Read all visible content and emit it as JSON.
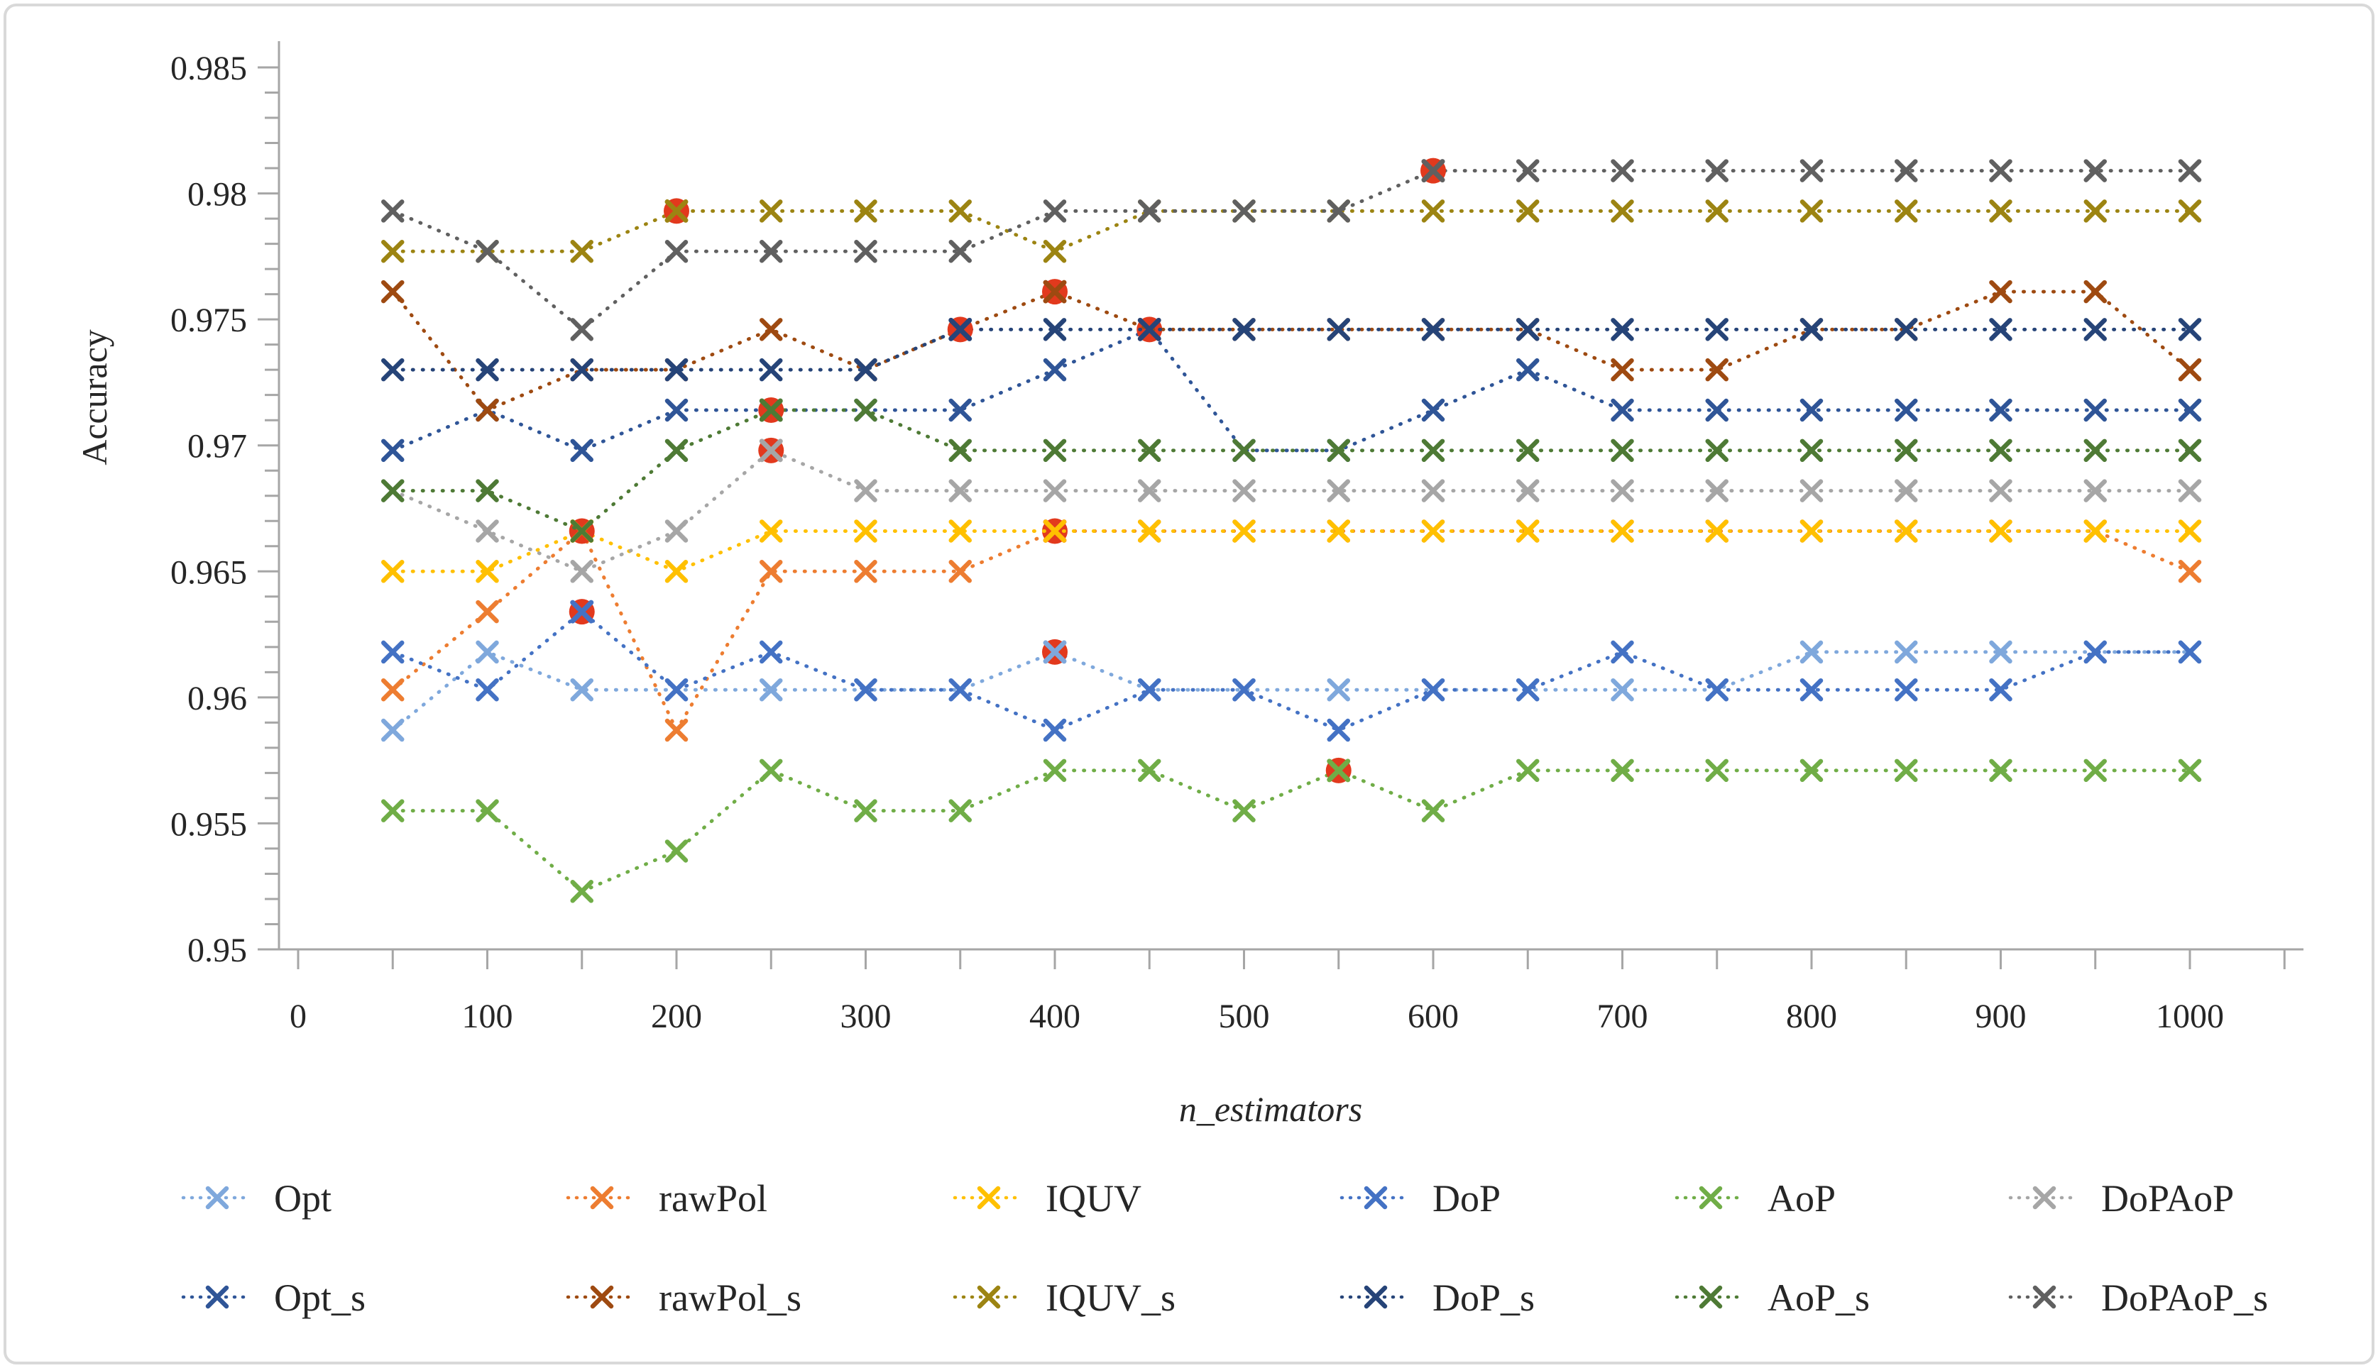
{
  "figure": {
    "border_color": "#d9d9d9",
    "background": "#ffffff"
  },
  "chart_data": {
    "type": "line",
    "title": "",
    "xlabel": "n_estimators",
    "ylabel": "Accuracy",
    "xlim": [
      0,
      1070
    ],
    "ylim": [
      0.95,
      0.985
    ],
    "grid": false,
    "legend_position": "bottom",
    "axis_color": "#a6a6a6",
    "highlight_color": "#e2391d",
    "x": [
      50,
      100,
      150,
      200,
      250,
      300,
      350,
      400,
      450,
      500,
      550,
      600,
      650,
      700,
      750,
      800,
      850,
      900,
      950,
      1000
    ],
    "x_ticks": [
      0,
      100,
      200,
      300,
      400,
      500,
      600,
      700,
      800,
      900,
      1000
    ],
    "y_ticks": [
      "0.985",
      "0.98",
      "0.975",
      "0.97",
      "0.965",
      "0.96",
      "0.955",
      "0.95"
    ],
    "y_tick_values": [
      0.985,
      0.98,
      0.975,
      0.97,
      0.965,
      0.96,
      0.955,
      0.95
    ],
    "series": [
      {
        "name": "Opt",
        "color": "#7fa8dc",
        "selected_x": 400,
        "values": [
          0.9587,
          0.9618,
          0.9603,
          0.9603,
          0.9603,
          0.9603,
          0.9603,
          0.9618,
          0.9603,
          0.9603,
          0.9603,
          0.9603,
          0.9603,
          0.9603,
          0.9603,
          0.9618,
          0.9618,
          0.9618,
          0.9618,
          0.9618
        ]
      },
      {
        "name": "rawPol",
        "color": "#ed7d31",
        "selected_x": 400,
        "values": [
          0.9603,
          0.9634,
          0.9666,
          0.9587,
          0.965,
          0.965,
          0.965,
          0.9666,
          0.9666,
          0.9666,
          0.9666,
          0.9666,
          0.9666,
          0.9666,
          0.9666,
          0.9666,
          0.9666,
          0.9666,
          0.9666,
          0.965
        ]
      },
      {
        "name": "IQUV",
        "color": "#ffc000",
        "selected_x": 150,
        "values": [
          0.965,
          0.965,
          0.9666,
          0.965,
          0.9666,
          0.9666,
          0.9666,
          0.9666,
          0.9666,
          0.9666,
          0.9666,
          0.9666,
          0.9666,
          0.9666,
          0.9666,
          0.9666,
          0.9666,
          0.9666,
          0.9666,
          0.9666
        ]
      },
      {
        "name": "DoP",
        "color": "#4472c4",
        "selected_x": 150,
        "values": [
          0.9618,
          0.9603,
          0.9634,
          0.9603,
          0.9618,
          0.9603,
          0.9603,
          0.9587,
          0.9603,
          0.9603,
          0.9587,
          0.9603,
          0.9603,
          0.9618,
          0.9603,
          0.9603,
          0.9603,
          0.9603,
          0.9618,
          0.9618
        ]
      },
      {
        "name": "AoP",
        "color": "#70ad47",
        "selected_x": 550,
        "values": [
          0.9555,
          0.9555,
          0.9523,
          0.9539,
          0.9571,
          0.9555,
          0.9555,
          0.9571,
          0.9571,
          0.9555,
          0.9571,
          0.9555,
          0.9571,
          0.9571,
          0.9571,
          0.9571,
          0.9571,
          0.9571,
          0.9571,
          0.9571
        ]
      },
      {
        "name": "DoPAoP",
        "color": "#a6a6a6",
        "selected_x": 250,
        "values": [
          0.9682,
          0.9666,
          0.965,
          0.9666,
          0.9698,
          0.9682,
          0.9682,
          0.9682,
          0.9682,
          0.9682,
          0.9682,
          0.9682,
          0.9682,
          0.9682,
          0.9682,
          0.9682,
          0.9682,
          0.9682,
          0.9682,
          0.9682
        ]
      },
      {
        "name": "Opt_s",
        "color": "#2f5597",
        "selected_x": 450,
        "values": [
          0.9698,
          0.9714,
          0.9698,
          0.9714,
          0.9714,
          0.9714,
          0.9714,
          0.973,
          0.9746,
          0.9698,
          0.9698,
          0.9714,
          0.973,
          0.9714,
          0.9714,
          0.9714,
          0.9714,
          0.9714,
          0.9714,
          0.9714
        ]
      },
      {
        "name": "rawPol_s",
        "color": "#9e4a11",
        "selected_x": 400,
        "values": [
          0.9761,
          0.9714,
          0.973,
          0.973,
          0.9746,
          0.973,
          0.9746,
          0.9761,
          0.9746,
          0.9746,
          0.9746,
          0.9746,
          0.9746,
          0.973,
          0.973,
          0.9746,
          0.9746,
          0.9761,
          0.9761,
          0.973
        ]
      },
      {
        "name": "IQUV_s",
        "color": "#9c8412",
        "selected_x": 200,
        "values": [
          0.9777,
          0.9777,
          0.9777,
          0.9793,
          0.9793,
          0.9793,
          0.9793,
          0.9777,
          0.9793,
          0.9793,
          0.9793,
          0.9793,
          0.9793,
          0.9793,
          0.9793,
          0.9793,
          0.9793,
          0.9793,
          0.9793,
          0.9793
        ]
      },
      {
        "name": "DoP_s",
        "color": "#264478",
        "selected_x": 350,
        "values": [
          0.973,
          0.973,
          0.973,
          0.973,
          0.973,
          0.973,
          0.9746,
          0.9746,
          0.9746,
          0.9746,
          0.9746,
          0.9746,
          0.9746,
          0.9746,
          0.9746,
          0.9746,
          0.9746,
          0.9746,
          0.9746,
          0.9746
        ]
      },
      {
        "name": "AoP_s",
        "color": "#4e7a35",
        "selected_x": 250,
        "values": [
          0.9682,
          0.9682,
          0.9666,
          0.9698,
          0.9714,
          0.9714,
          0.9698,
          0.9698,
          0.9698,
          0.9698,
          0.9698,
          0.9698,
          0.9698,
          0.9698,
          0.9698,
          0.9698,
          0.9698,
          0.9698,
          0.9698,
          0.9698
        ]
      },
      {
        "name": "DoPAoP_s",
        "color": "#606060",
        "selected_x": 600,
        "values": [
          0.9793,
          0.9777,
          0.9746,
          0.9777,
          0.9777,
          0.9777,
          0.9777,
          0.9793,
          0.9793,
          0.9793,
          0.9793,
          0.9809,
          0.9809,
          0.9809,
          0.9809,
          0.9809,
          0.9809,
          0.9809,
          0.9809,
          0.9809
        ]
      }
    ],
    "legend": {
      "rows": [
        [
          "Opt",
          "rawPol",
          "IQUV",
          "DoP",
          "AoP",
          "DoPAoP"
        ],
        [
          "Opt_s",
          "rawPol_s",
          "IQUV_s",
          "DoP_s",
          "AoP_s",
          "DoPAoP_s"
        ]
      ]
    }
  }
}
